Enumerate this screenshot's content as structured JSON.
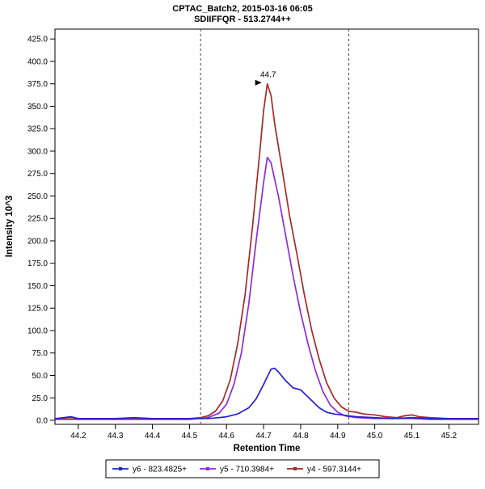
{
  "chart_data": {
    "type": "line",
    "title_line1": "CPTAC_Batch2, 2015-03-16 06:05",
    "title_line2": "SDIIFFQR - 513.2744++",
    "xlabel": "Retention Time",
    "ylabel": "Intensity 10^3",
    "xlim": [
      44.137,
      45.28
    ],
    "ylim": [
      -4.5,
      436
    ],
    "x_ticks": [
      44.2,
      44.3,
      44.4,
      44.5,
      44.6,
      44.7,
      44.8,
      44.9,
      45.0,
      45.1,
      45.2
    ],
    "x_tick_labels": [
      "44.2",
      "44.3",
      "44.4",
      "44.5",
      "44.6",
      "44.7",
      "44.8",
      "44.9",
      "45.0",
      "45.1",
      "45.2"
    ],
    "y_ticks": [
      0,
      25,
      50,
      75,
      100,
      125,
      150,
      175,
      200,
      225,
      250,
      275,
      300,
      325,
      350,
      375,
      400,
      425
    ],
    "y_tick_labels": [
      "0.0",
      "25.0",
      "50.0",
      "75.0",
      "100.0",
      "125.0",
      "150.0",
      "175.0",
      "200.0",
      "225.0",
      "250.0",
      "275.0",
      "300.0",
      "325.0",
      "350.0",
      "375.0",
      "400.0",
      "425.0"
    ],
    "integration_boundaries": [
      44.53,
      44.93
    ],
    "annotation": {
      "text": "44.7",
      "x": 44.71,
      "y": 375
    },
    "series": [
      {
        "name": "y6 - 823.4825+",
        "color": "#2222cc",
        "points": [
          [
            44.14,
            2
          ],
          [
            44.16,
            3
          ],
          [
            44.18,
            4
          ],
          [
            44.2,
            2
          ],
          [
            44.25,
            2
          ],
          [
            44.3,
            2
          ],
          [
            44.35,
            3
          ],
          [
            44.4,
            2
          ],
          [
            44.45,
            2
          ],
          [
            44.5,
            2
          ],
          [
            44.55,
            2
          ],
          [
            44.58,
            3
          ],
          [
            44.6,
            4
          ],
          [
            44.63,
            7
          ],
          [
            44.66,
            14
          ],
          [
            44.68,
            24
          ],
          [
            44.7,
            40
          ],
          [
            44.72,
            57
          ],
          [
            44.73,
            58
          ],
          [
            44.74,
            54
          ],
          [
            44.76,
            44
          ],
          [
            44.78,
            36
          ],
          [
            44.8,
            34
          ],
          [
            44.81,
            30
          ],
          [
            44.83,
            22
          ],
          [
            44.85,
            14
          ],
          [
            44.87,
            9
          ],
          [
            44.89,
            7
          ],
          [
            44.91,
            6
          ],
          [
            44.93,
            5
          ],
          [
            44.95,
            4
          ],
          [
            45.0,
            3
          ],
          [
            45.05,
            2
          ],
          [
            45.1,
            3
          ],
          [
            45.15,
            2
          ],
          [
            45.2,
            2
          ],
          [
            45.28,
            2
          ]
        ]
      },
      {
        "name": "y5 - 710.3984+",
        "color": "#8a2be2",
        "points": [
          [
            44.14,
            1
          ],
          [
            44.2,
            1
          ],
          [
            44.3,
            1
          ],
          [
            44.4,
            1
          ],
          [
            44.5,
            1
          ],
          [
            44.55,
            3
          ],
          [
            44.58,
            8
          ],
          [
            44.6,
            18
          ],
          [
            44.62,
            40
          ],
          [
            44.64,
            75
          ],
          [
            44.66,
            130
          ],
          [
            44.68,
            200
          ],
          [
            44.7,
            265
          ],
          [
            44.71,
            293
          ],
          [
            44.72,
            287
          ],
          [
            44.74,
            250
          ],
          [
            44.76,
            205
          ],
          [
            44.78,
            160
          ],
          [
            44.8,
            120
          ],
          [
            44.82,
            85
          ],
          [
            44.84,
            55
          ],
          [
            44.86,
            32
          ],
          [
            44.88,
            17
          ],
          [
            44.9,
            9
          ],
          [
            44.92,
            5
          ],
          [
            44.95,
            3
          ],
          [
            45.0,
            2
          ],
          [
            45.05,
            2
          ],
          [
            45.1,
            2
          ],
          [
            45.15,
            1
          ],
          [
            45.2,
            1
          ],
          [
            45.28,
            1
          ]
        ]
      },
      {
        "name": "y4 - 597.3144+",
        "color": "#a52a2a",
        "points": [
          [
            44.14,
            2
          ],
          [
            44.18,
            3
          ],
          [
            44.2,
            2
          ],
          [
            44.25,
            2
          ],
          [
            44.3,
            2
          ],
          [
            44.35,
            2
          ],
          [
            44.4,
            2
          ],
          [
            44.45,
            2
          ],
          [
            44.5,
            2
          ],
          [
            44.53,
            3
          ],
          [
            44.55,
            5
          ],
          [
            44.57,
            10
          ],
          [
            44.59,
            22
          ],
          [
            44.61,
            45
          ],
          [
            44.63,
            85
          ],
          [
            44.65,
            140
          ],
          [
            44.67,
            215
          ],
          [
            44.69,
            300
          ],
          [
            44.7,
            345
          ],
          [
            44.71,
            375
          ],
          [
            44.72,
            362
          ],
          [
            44.73,
            330
          ],
          [
            44.75,
            280
          ],
          [
            44.77,
            228
          ],
          [
            44.79,
            185
          ],
          [
            44.81,
            140
          ],
          [
            44.83,
            100
          ],
          [
            44.85,
            68
          ],
          [
            44.87,
            42
          ],
          [
            44.89,
            25
          ],
          [
            44.91,
            15
          ],
          [
            44.93,
            10
          ],
          [
            44.95,
            9
          ],
          [
            44.97,
            7
          ],
          [
            45.0,
            6
          ],
          [
            45.03,
            4
          ],
          [
            45.06,
            3
          ],
          [
            45.08,
            5
          ],
          [
            45.1,
            6
          ],
          [
            45.12,
            4
          ],
          [
            45.15,
            3
          ],
          [
            45.2,
            2
          ],
          [
            45.25,
            2
          ],
          [
            45.28,
            2
          ]
        ]
      }
    ],
    "legend": [
      "y6 - 823.4825+",
      "y5 - 710.3984+",
      "y4 - 597.3144+"
    ],
    "legend_position": "bottom",
    "grid": false
  }
}
